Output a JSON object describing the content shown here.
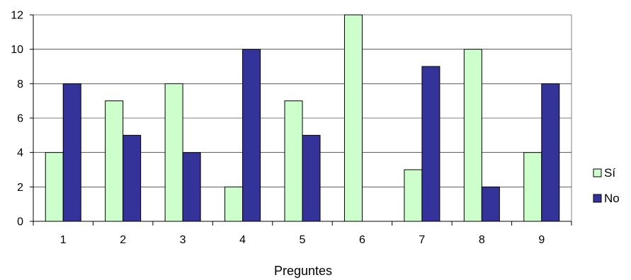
{
  "chart_data": {
    "type": "bar",
    "categories": [
      "1",
      "2",
      "3",
      "4",
      "5",
      "6",
      "7",
      "8",
      "9"
    ],
    "series": [
      {
        "name": "Sí",
        "values": [
          4,
          7,
          8,
          2,
          7,
          12,
          3,
          10,
          4
        ],
        "color": "#ccffcc"
      },
      {
        "name": "No",
        "values": [
          8,
          5,
          4,
          10,
          5,
          0,
          9,
          2,
          8
        ],
        "color": "#333399"
      }
    ],
    "title": "",
    "xlabel": "Preguntes",
    "ylabel": "",
    "ylim": [
      0,
      12
    ],
    "yticks": [
      0,
      2,
      4,
      6,
      8,
      10,
      12
    ],
    "grid": true,
    "legend_position": "right"
  }
}
